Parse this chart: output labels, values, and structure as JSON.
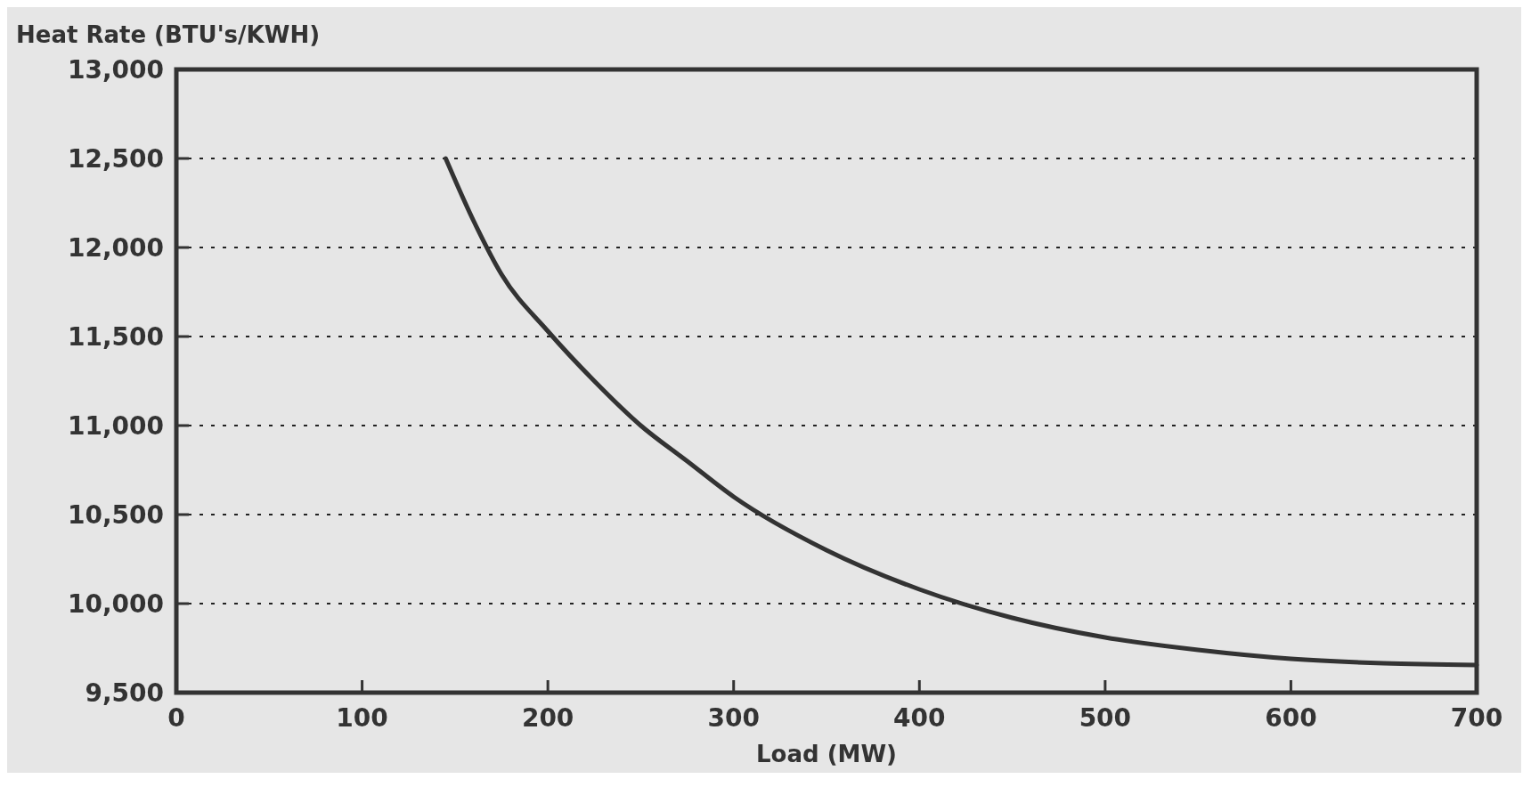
{
  "chart_data": {
    "type": "line",
    "xlabel": "Load (MW)",
    "ylabel": "Heat Rate (BTU's/KWH)",
    "x": [
      145,
      160,
      175,
      200,
      225,
      250,
      275,
      300,
      350,
      400,
      450,
      500,
      550,
      600,
      650,
      700
    ],
    "series": [
      {
        "color": "#333333",
        "values": [
          12500,
          12150,
          11850,
          11530,
          11250,
          11000,
          10800,
          10600,
          10300,
          10080,
          9920,
          9810,
          9740,
          9690,
          9665,
          9655
        ]
      }
    ],
    "xlim": [
      0,
      700
    ],
    "xticks": [
      0,
      100,
      200,
      300,
      400,
      500,
      600,
      700
    ],
    "ylim": [
      9500,
      13000
    ],
    "yticks": [
      {
        "value": 9500,
        "label": "9,500"
      },
      {
        "value": 10000,
        "label": "10,000"
      },
      {
        "value": 10500,
        "label": "10,500"
      },
      {
        "value": 11000,
        "label": "11,000"
      },
      {
        "value": 11500,
        "label": "11,500"
      },
      {
        "value": 12000,
        "label": "12,000"
      },
      {
        "value": 12500,
        "label": "12,500"
      },
      {
        "value": 13000,
        "label": "13,000"
      }
    ],
    "grid": "y",
    "line_style": "solid",
    "marker": "none"
  }
}
